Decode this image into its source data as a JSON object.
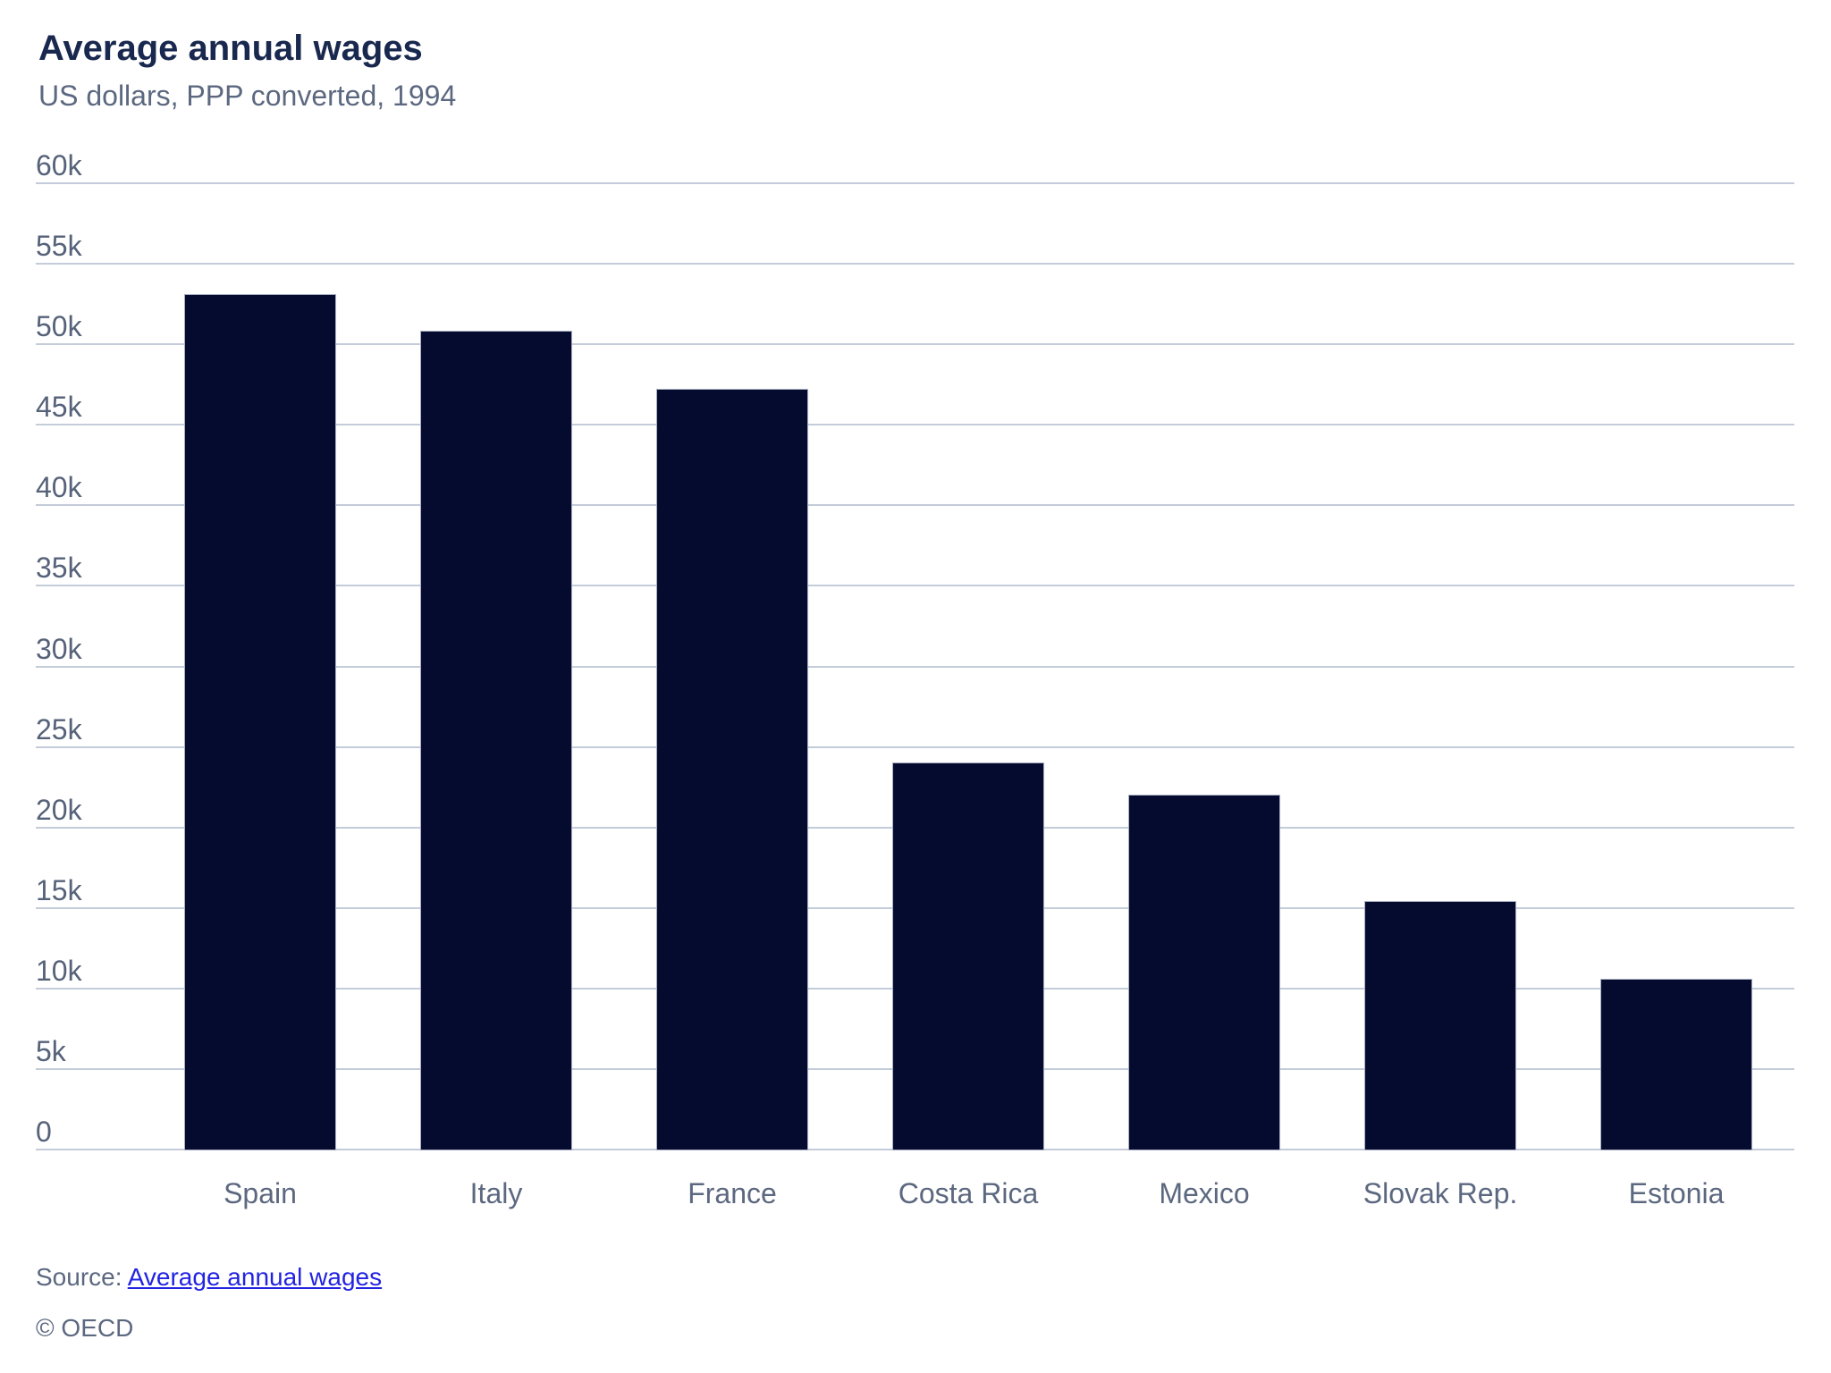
{
  "header": {
    "title": "Average annual wages",
    "subtitle": "US dollars, PPP converted, 1994"
  },
  "chart_data": {
    "type": "bar",
    "title": "Average annual wages",
    "subtitle": "US dollars, PPP converted, 1994",
    "categories": [
      "Spain",
      "Italy",
      "France",
      "Costa Rica",
      "Mexico",
      "Slovak Rep.",
      "Estonia"
    ],
    "values": [
      53200,
      50900,
      47300,
      24100,
      22100,
      15500,
      10650
    ],
    "xlabel": "",
    "ylabel": "US dollars",
    "ylim": [
      0,
      60000
    ],
    "ytick_step": 5000,
    "ytick_labels": [
      "0",
      "5k",
      "10k",
      "15k",
      "20k",
      "25k",
      "30k",
      "35k",
      "40k",
      "45k",
      "50k",
      "55k",
      "60k"
    ],
    "grid": true,
    "legend": "none",
    "bar_color": "#050b2f"
  },
  "colors": {
    "bar": "#050b2f",
    "gridline": "#c4cbd9",
    "title_text": "#19284e",
    "axis_text": "#5c6880",
    "link": "#2323e2",
    "background": "#ffffff"
  },
  "footer": {
    "source_prefix": "Source: ",
    "source_link_label": "Average annual wages",
    "copyright": "© OECD"
  }
}
